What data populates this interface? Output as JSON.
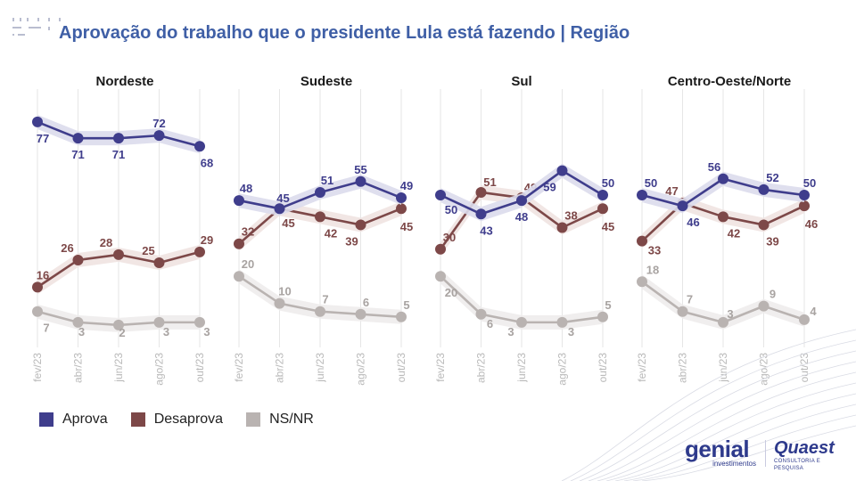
{
  "title": "Aprovação do trabalho que o presidente Lula está fazendo | Região",
  "legend": [
    {
      "label": "Aprova",
      "color": "#3f3d8c"
    },
    {
      "label": "Desaprova",
      "color": "#7d4848"
    },
    {
      "label": "NS/NR",
      "color": "#b9b3b1"
    }
  ],
  "logos": {
    "genial_main": "genial",
    "genial_sub": "investimentos",
    "quaest_main": "Quaest",
    "quaest_sub": "CONSULTORIA E PESQUISA"
  },
  "chart_data": [
    {
      "type": "line",
      "title": "Nordeste",
      "x": [
        "fev/23",
        "abr/23",
        "jun/23",
        "ago/23",
        "out/23"
      ],
      "series": [
        {
          "name": "Aprova",
          "values": [
            77,
            71,
            71,
            72,
            68
          ]
        },
        {
          "name": "Desaprova",
          "values": [
            16,
            26,
            28,
            25,
            29
          ]
        },
        {
          "name": "NS/NR",
          "values": [
            7,
            3,
            2,
            3,
            3
          ]
        }
      ]
    },
    {
      "type": "line",
      "title": "Sudeste",
      "x": [
        "fev/23",
        "abr/23",
        "jun/23",
        "ago/23",
        "out/23"
      ],
      "series": [
        {
          "name": "Aprova",
          "values": [
            48,
            45,
            51,
            55,
            49
          ]
        },
        {
          "name": "Desaprova",
          "values": [
            32,
            45,
            42,
            39,
            45
          ]
        },
        {
          "name": "NS/NR",
          "values": [
            20,
            10,
            7,
            6,
            5
          ]
        }
      ]
    },
    {
      "type": "line",
      "title": "Sul",
      "x": [
        "fev/23",
        "abr/23",
        "jun/23",
        "ago/23",
        "out/23"
      ],
      "series": [
        {
          "name": "Aprova",
          "values": [
            50,
            43,
            48,
            59,
            50
          ]
        },
        {
          "name": "Desaprova",
          "values": [
            30,
            51,
            49,
            38,
            45
          ]
        },
        {
          "name": "NS/NR",
          "values": [
            20,
            6,
            3,
            3,
            5
          ]
        }
      ]
    },
    {
      "type": "line",
      "title": "Centro-Oeste/Norte",
      "x": [
        "fev/23",
        "abr/23",
        "jun/23",
        "ago/23",
        "out/23"
      ],
      "series": [
        {
          "name": "Aprova",
          "values": [
            50,
            46,
            56,
            52,
            50
          ]
        },
        {
          "name": "Desaprova",
          "values": [
            33,
            47,
            42,
            39,
            46
          ]
        },
        {
          "name": "NS/NR",
          "values": [
            18,
            7,
            3,
            9,
            4
          ]
        }
      ]
    }
  ]
}
